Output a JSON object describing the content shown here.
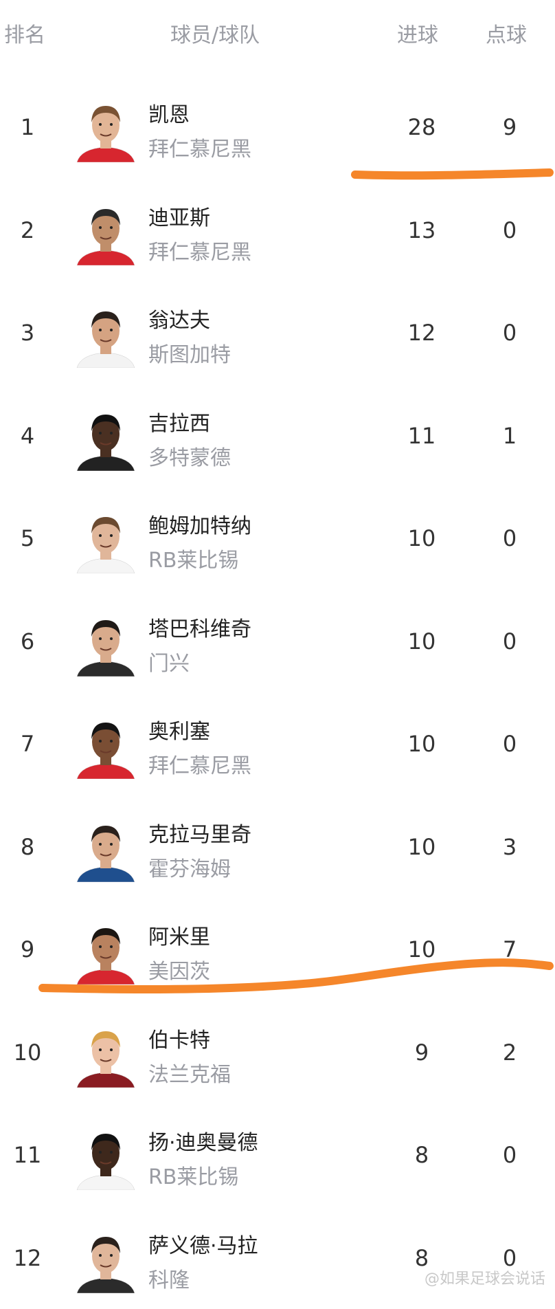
{
  "header": {
    "rank": "排名",
    "player_team": "球员/球队",
    "goals": "进球",
    "penalties": "点球"
  },
  "rows": [
    {
      "rank": "1",
      "name": "凯恩",
      "team": "拜仁慕尼黑",
      "goals": "28",
      "penalties": "9",
      "jersey": "#d7262f",
      "skin": "#e2b596",
      "hair": "#7a5233"
    },
    {
      "rank": "2",
      "name": "迪亚斯",
      "team": "拜仁慕尼黑",
      "goals": "13",
      "penalties": "0",
      "jersey": "#d7262f",
      "skin": "#c08e6a",
      "hair": "#2a2a2a"
    },
    {
      "rank": "3",
      "name": "翁达夫",
      "team": "斯图加特",
      "goals": "12",
      "penalties": "0",
      "jersey": "#f3f3f3",
      "skin": "#d5a382",
      "hair": "#2a211c"
    },
    {
      "rank": "4",
      "name": "吉拉西",
      "team": "多特蒙德",
      "goals": "11",
      "penalties": "1",
      "jersey": "#222222",
      "skin": "#4a3022",
      "hair": "#111111"
    },
    {
      "rank": "5",
      "name": "鲍姆加特纳",
      "team": "RB莱比锡",
      "goals": "10",
      "penalties": "0",
      "jersey": "#f5f5f5",
      "skin": "#e0b69a",
      "hair": "#6b4a30"
    },
    {
      "rank": "6",
      "name": "塔巴科维奇",
      "team": "门兴",
      "goals": "10",
      "penalties": "0",
      "jersey": "#2b2b2b",
      "skin": "#d9ab8c",
      "hair": "#1f1a17"
    },
    {
      "rank": "7",
      "name": "奥利塞",
      "team": "拜仁慕尼黑",
      "goals": "10",
      "penalties": "0",
      "jersey": "#d7262f",
      "skin": "#7a4e34",
      "hair": "#141414"
    },
    {
      "rank": "8",
      "name": "克拉马里奇",
      "team": "霍芬海姆",
      "goals": "10",
      "penalties": "3",
      "jersey": "#1f4f8e",
      "skin": "#d9ab8c",
      "hair": "#2a211c"
    },
    {
      "rank": "9",
      "name": "阿米里",
      "team": "美因茨",
      "goals": "10",
      "penalties": "7",
      "jersey": "#d7262f",
      "skin": "#b9825f",
      "hair": "#1b1612"
    },
    {
      "rank": "10",
      "name": "伯卡特",
      "team": "法兰克福",
      "goals": "9",
      "penalties": "2",
      "jersey": "#8a1c22",
      "skin": "#ecc1a6",
      "hair": "#d9a24a"
    },
    {
      "rank": "11",
      "name": "扬·迪奥曼德",
      "team": "RB莱比锡",
      "goals": "8",
      "penalties": "0",
      "jersey": "#f5f5f5",
      "skin": "#3e281c",
      "hair": "#111111"
    },
    {
      "rank": "12",
      "name": "萨义德·马拉",
      "team": "科隆",
      "goals": "8",
      "penalties": "0",
      "jersey": "#2b2b2b",
      "skin": "#e0b69a",
      "hair": "#2a211c"
    }
  ],
  "annotation_color": "#f5862a",
  "watermark": "@如果足球会说话"
}
